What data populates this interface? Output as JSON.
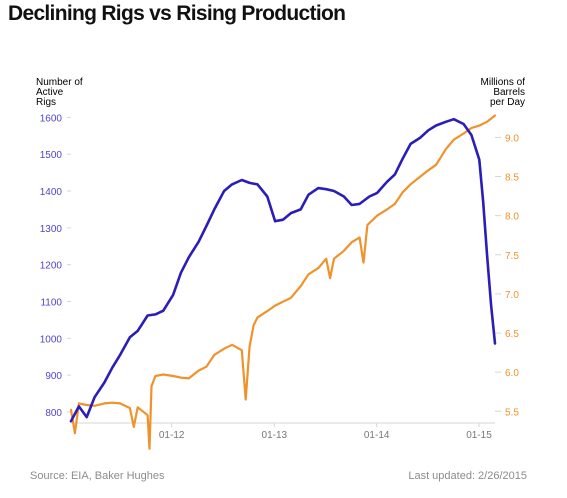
{
  "page": {
    "title": "Declining Rigs vs Rising Production",
    "source": "Source: EIA, Baker Hughes",
    "updated": "Last updated: 2/26/2015"
  },
  "colors": {
    "rigs": "#2a1db8",
    "production": "#f0922b",
    "left_axis_text": "#4f46c8",
    "right_axis_text": "#f0922b",
    "x_axis_text": "#777777",
    "axis_line": "#d6d6d6"
  },
  "chart_data": {
    "type": "line",
    "title": "Declining Rigs vs Rising Production",
    "x_type": "date",
    "x_range": [
      "2011-01-07",
      "2015-02-27"
    ],
    "x_ticks": [
      "2012-01-01",
      "2013-01-01",
      "2014-01-01",
      "2015-01-01"
    ],
    "x_tick_labels": [
      "01-12",
      "01-13",
      "01-14",
      "01-15"
    ],
    "y_left": {
      "label": "Number of\nActive\nRigs",
      "range": [
        770,
        1620
      ],
      "ticks": [
        800,
        900,
        1000,
        1100,
        1200,
        1300,
        1400,
        1500,
        1600
      ]
    },
    "y_right": {
      "label": "Millions of\nBarrels\nper Day",
      "range": [
        5.35,
        9.35
      ],
      "ticks": [
        5.5,
        6.0,
        6.5,
        7.0,
        7.5,
        8.0,
        8.5,
        9.0
      ],
      "tick_labels": [
        "5.5",
        "6.0",
        "6.5",
        "7.0",
        "7.5",
        "8.0",
        "8.5",
        "9.0"
      ]
    },
    "grid": false,
    "legend": "none",
    "series": [
      {
        "axis": "left",
        "points": [
          [
            "2011-01-07",
            775
          ],
          [
            "2011-02-04",
            815
          ],
          [
            "2011-03-04",
            786
          ],
          [
            "2011-04-01",
            840
          ],
          [
            "2011-05-06",
            880
          ],
          [
            "2011-06-03",
            920
          ],
          [
            "2011-07-01",
            955
          ],
          [
            "2011-08-05",
            1003
          ],
          [
            "2011-09-02",
            1020
          ],
          [
            "2011-10-07",
            1062
          ],
          [
            "2011-11-04",
            1065
          ],
          [
            "2011-12-02",
            1075
          ],
          [
            "2012-01-06",
            1118
          ],
          [
            "2012-02-03",
            1178
          ],
          [
            "2012-03-02",
            1220
          ],
          [
            "2012-04-06",
            1262
          ],
          [
            "2012-05-04",
            1305
          ],
          [
            "2012-06-01",
            1350
          ],
          [
            "2012-07-06",
            1400
          ],
          [
            "2012-08-03",
            1418
          ],
          [
            "2012-09-07",
            1430
          ],
          [
            "2012-10-05",
            1422
          ],
          [
            "2012-11-02",
            1418
          ],
          [
            "2012-12-07",
            1385
          ],
          [
            "2013-01-04",
            1318
          ],
          [
            "2013-02-01",
            1322
          ],
          [
            "2013-03-01",
            1340
          ],
          [
            "2013-04-05",
            1350
          ],
          [
            "2013-05-03",
            1390
          ],
          [
            "2013-06-07",
            1408
          ],
          [
            "2013-07-05",
            1405
          ],
          [
            "2013-08-02",
            1400
          ],
          [
            "2013-09-06",
            1385
          ],
          [
            "2013-10-04",
            1362
          ],
          [
            "2013-11-01",
            1365
          ],
          [
            "2013-12-06",
            1385
          ],
          [
            "2014-01-03",
            1395
          ],
          [
            "2014-02-07",
            1425
          ],
          [
            "2014-03-07",
            1445
          ],
          [
            "2014-04-04",
            1488
          ],
          [
            "2014-05-02",
            1528
          ],
          [
            "2014-06-06",
            1545
          ],
          [
            "2014-07-04",
            1565
          ],
          [
            "2014-08-01",
            1578
          ],
          [
            "2014-09-05",
            1588
          ],
          [
            "2014-10-03",
            1595
          ],
          [
            "2014-11-07",
            1582
          ],
          [
            "2014-12-05",
            1552
          ],
          [
            "2015-01-02",
            1485
          ],
          [
            "2015-01-16",
            1370
          ],
          [
            "2015-01-30",
            1225
          ],
          [
            "2015-02-13",
            1090
          ],
          [
            "2015-02-27",
            986
          ]
        ]
      },
      {
        "axis": "right",
        "points": [
          [
            "2011-01-07",
            5.52
          ],
          [
            "2011-01-21",
            5.22
          ],
          [
            "2011-02-04",
            5.6
          ],
          [
            "2011-03-04",
            5.58
          ],
          [
            "2011-04-01",
            5.57
          ],
          [
            "2011-05-06",
            5.6
          ],
          [
            "2011-06-03",
            5.61
          ],
          [
            "2011-07-01",
            5.6
          ],
          [
            "2011-08-05",
            5.54
          ],
          [
            "2011-08-19",
            5.3
          ],
          [
            "2011-09-02",
            5.55
          ],
          [
            "2011-10-07",
            5.45
          ],
          [
            "2011-10-14",
            5.02
          ],
          [
            "2011-10-21",
            5.82
          ],
          [
            "2011-11-04",
            5.95
          ],
          [
            "2011-12-02",
            5.97
          ],
          [
            "2012-01-06",
            5.95
          ],
          [
            "2012-02-03",
            5.93
          ],
          [
            "2012-03-02",
            5.92
          ],
          [
            "2012-04-06",
            6.02
          ],
          [
            "2012-05-04",
            6.07
          ],
          [
            "2012-06-01",
            6.22
          ],
          [
            "2012-07-06",
            6.3
          ],
          [
            "2012-08-03",
            6.35
          ],
          [
            "2012-09-07",
            6.28
          ],
          [
            "2012-09-21",
            5.65
          ],
          [
            "2012-10-05",
            6.33
          ],
          [
            "2012-10-19",
            6.6
          ],
          [
            "2012-11-02",
            6.7
          ],
          [
            "2012-12-07",
            6.78
          ],
          [
            "2013-01-04",
            6.85
          ],
          [
            "2013-02-01",
            6.9
          ],
          [
            "2013-03-01",
            6.95
          ],
          [
            "2013-04-05",
            7.1
          ],
          [
            "2013-05-03",
            7.25
          ],
          [
            "2013-06-07",
            7.33
          ],
          [
            "2013-07-05",
            7.45
          ],
          [
            "2013-07-19",
            7.2
          ],
          [
            "2013-08-02",
            7.45
          ],
          [
            "2013-09-06",
            7.55
          ],
          [
            "2013-10-04",
            7.66
          ],
          [
            "2013-11-01",
            7.72
          ],
          [
            "2013-11-15",
            7.4
          ],
          [
            "2013-11-29",
            7.88
          ],
          [
            "2014-01-03",
            8.0
          ],
          [
            "2014-02-07",
            8.08
          ],
          [
            "2014-03-07",
            8.15
          ],
          [
            "2014-04-04",
            8.3
          ],
          [
            "2014-05-02",
            8.4
          ],
          [
            "2014-06-06",
            8.5
          ],
          [
            "2014-07-04",
            8.58
          ],
          [
            "2014-08-01",
            8.65
          ],
          [
            "2014-09-05",
            8.85
          ],
          [
            "2014-10-03",
            8.97
          ],
          [
            "2014-11-07",
            9.05
          ],
          [
            "2014-12-05",
            9.12
          ],
          [
            "2015-01-02",
            9.15
          ],
          [
            "2015-01-30",
            9.2
          ],
          [
            "2015-02-27",
            9.28
          ]
        ]
      }
    ]
  }
}
